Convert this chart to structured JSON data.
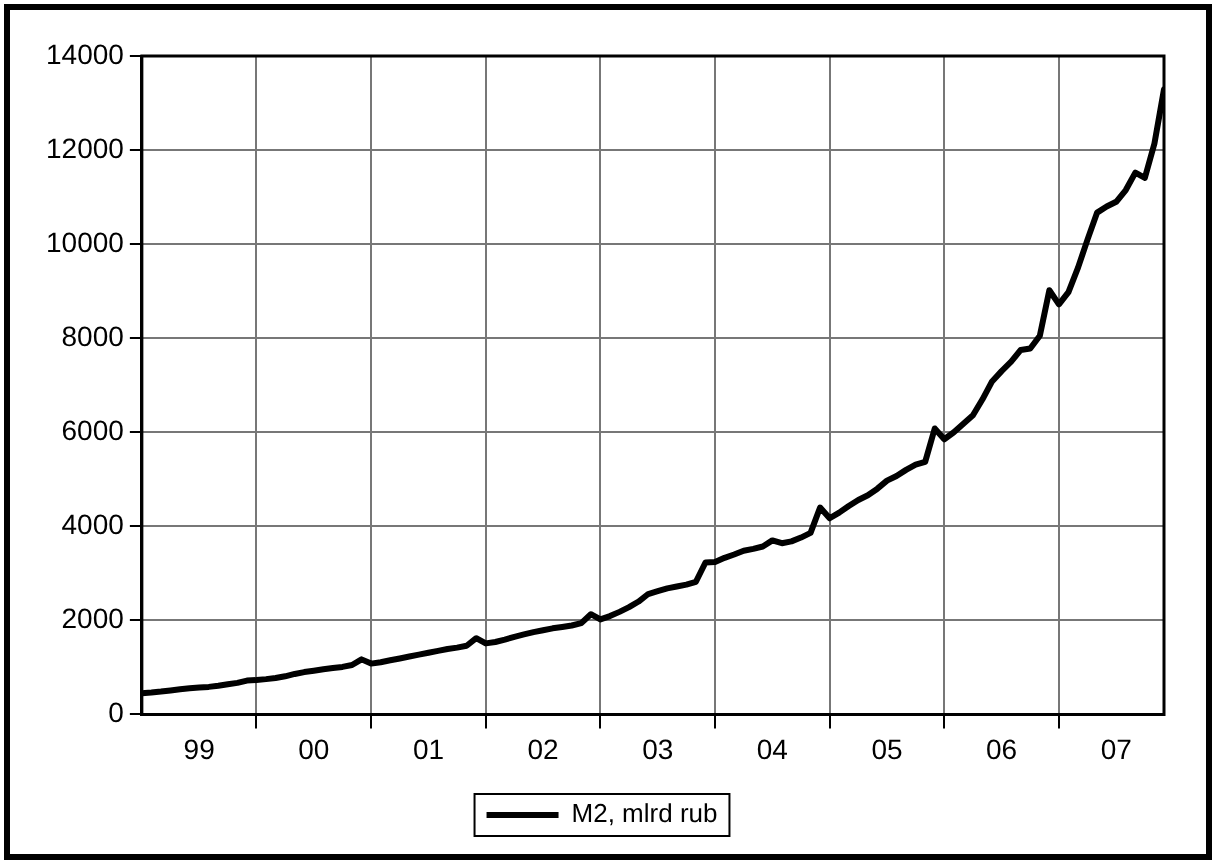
{
  "chart_data": {
    "type": "line",
    "x": [
      "1999-01",
      "1999-02",
      "1999-03",
      "1999-04",
      "1999-05",
      "1999-06",
      "1999-07",
      "1999-08",
      "1999-09",
      "1999-10",
      "1999-11",
      "1999-12",
      "2000-01",
      "2000-02",
      "2000-03",
      "2000-04",
      "2000-05",
      "2000-06",
      "2000-07",
      "2000-08",
      "2000-09",
      "2000-10",
      "2000-11",
      "2000-12",
      "2001-01",
      "2001-02",
      "2001-03",
      "2001-04",
      "2001-05",
      "2001-06",
      "2001-07",
      "2001-08",
      "2001-09",
      "2001-10",
      "2001-11",
      "2001-12",
      "2002-01",
      "2002-02",
      "2002-03",
      "2002-04",
      "2002-05",
      "2002-06",
      "2002-07",
      "2002-08",
      "2002-09",
      "2002-10",
      "2002-11",
      "2002-12",
      "2003-01",
      "2003-02",
      "2003-03",
      "2003-04",
      "2003-05",
      "2003-06",
      "2003-07",
      "2003-08",
      "2003-09",
      "2003-10",
      "2003-11",
      "2003-12",
      "2004-01",
      "2004-02",
      "2004-03",
      "2004-04",
      "2004-05",
      "2004-06",
      "2004-07",
      "2004-08",
      "2004-09",
      "2004-10",
      "2004-11",
      "2004-12",
      "2005-01",
      "2005-02",
      "2005-03",
      "2005-04",
      "2005-05",
      "2005-06",
      "2005-07",
      "2005-08",
      "2005-09",
      "2005-10",
      "2005-11",
      "2005-12",
      "2006-01",
      "2006-02",
      "2006-03",
      "2006-04",
      "2006-05",
      "2006-06",
      "2006-07",
      "2006-08",
      "2006-09",
      "2006-10",
      "2006-11",
      "2006-12",
      "2007-01",
      "2007-02",
      "2007-03",
      "2007-04",
      "2007-05",
      "2007-06",
      "2007-07",
      "2007-08",
      "2007-09",
      "2007-10",
      "2007-11",
      "2007-12"
    ],
    "series": [
      {
        "name": "M2, mlrd rub",
        "color": "#000000",
        "values": [
          450,
          465,
          485,
          510,
          535,
          555,
          570,
          585,
          610,
          640,
          670,
          720,
          730,
          750,
          775,
          810,
          860,
          900,
          930,
          960,
          985,
          1010,
          1050,
          1170,
          1080,
          1110,
          1150,
          1190,
          1230,
          1270,
          1310,
          1350,
          1390,
          1420,
          1460,
          1620,
          1510,
          1540,
          1590,
          1650,
          1700,
          1750,
          1790,
          1830,
          1860,
          1890,
          1940,
          2130,
          2020,
          2090,
          2180,
          2280,
          2400,
          2560,
          2620,
          2680,
          2720,
          2760,
          2820,
          3230,
          3240,
          3330,
          3400,
          3480,
          3520,
          3570,
          3700,
          3640,
          3680,
          3760,
          3860,
          4400,
          4170,
          4290,
          4430,
          4560,
          4660,
          4800,
          4970,
          5070,
          5200,
          5310,
          5370,
          6080,
          5850,
          6000,
          6180,
          6360,
          6700,
          7080,
          7300,
          7500,
          7750,
          7780,
          8050,
          9020,
          8720,
          8980,
          9500,
          10100,
          10670,
          10800,
          10900,
          11150,
          11520,
          11410,
          12140,
          13290
        ]
      }
    ],
    "xlim": [
      "1999-01",
      "2007-12"
    ],
    "xticks": [
      {
        "value": "1999-07",
        "label": "99"
      },
      {
        "value": "2000-01",
        "label": null
      },
      {
        "value": "2000-07",
        "label": "00"
      },
      {
        "value": "2001-01",
        "label": null
      },
      {
        "value": "2001-07",
        "label": "01"
      },
      {
        "value": "2002-01",
        "label": null
      },
      {
        "value": "2002-07",
        "label": "02"
      },
      {
        "value": "2003-01",
        "label": null
      },
      {
        "value": "2003-07",
        "label": "03"
      },
      {
        "value": "2004-01",
        "label": null
      },
      {
        "value": "2004-07",
        "label": "04"
      },
      {
        "value": "2005-01",
        "label": null
      },
      {
        "value": "2005-07",
        "label": "05"
      },
      {
        "value": "2006-01",
        "label": null
      },
      {
        "value": "2006-07",
        "label": "06"
      },
      {
        "value": "2007-01",
        "label": null
      },
      {
        "value": "2007-07",
        "label": "07"
      }
    ],
    "ylim": [
      0,
      14000
    ],
    "yticks": [
      0,
      2000,
      4000,
      6000,
      8000,
      10000,
      12000,
      14000
    ],
    "grid": true,
    "legend": "bottom",
    "marker": "none",
    "line_style": "solid"
  }
}
